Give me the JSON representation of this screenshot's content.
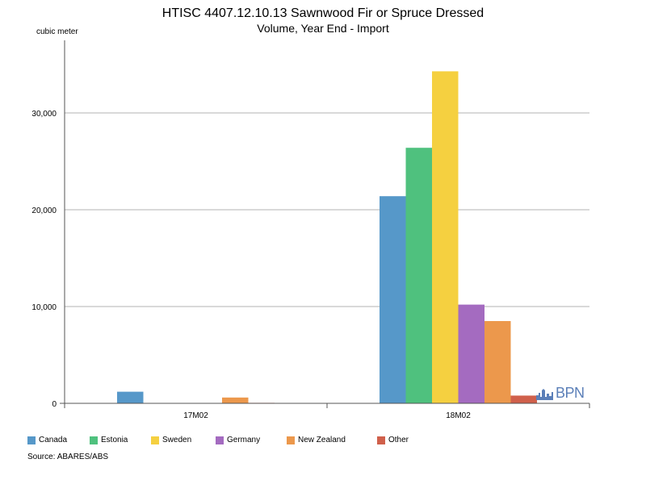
{
  "chart_data": {
    "type": "bar",
    "title": "HTISC 4407.12.10.13 Sawnwood Fir or Spruce Dressed",
    "subtitle": "Volume, Year End - Import",
    "ylabel": "cubic meter",
    "xlabel": "",
    "ylim": [
      0,
      35000
    ],
    "yticks": [
      0,
      10000,
      20000,
      30000
    ],
    "ytick_labels": [
      "0",
      "10,000",
      "20,000",
      "30,000"
    ],
    "grid": true,
    "legend_position": "bottom",
    "categories": [
      "17M02",
      "18M02"
    ],
    "series": [
      {
        "name": "Canada",
        "color": "#5698c9",
        "values": [
          1200,
          21400
        ]
      },
      {
        "name": "Estonia",
        "color": "#4fc17e",
        "values": [
          0,
          26400
        ]
      },
      {
        "name": "Sweden",
        "color": "#f5d040",
        "values": [
          0,
          34300
        ]
      },
      {
        "name": "Germany",
        "color": "#a46bc0",
        "values": [
          0,
          10200
        ]
      },
      {
        "name": "New Zealand",
        "color": "#ec984c",
        "values": [
          600,
          8500
        ]
      },
      {
        "name": "Other",
        "color": "#d0604b",
        "values": [
          50,
          800
        ]
      }
    ]
  },
  "source": "Source: ABARES/ABS",
  "logo": {
    "text": "BPN",
    "icon": "bpn-skyline-icon",
    "color": "#5b7fb8"
  }
}
